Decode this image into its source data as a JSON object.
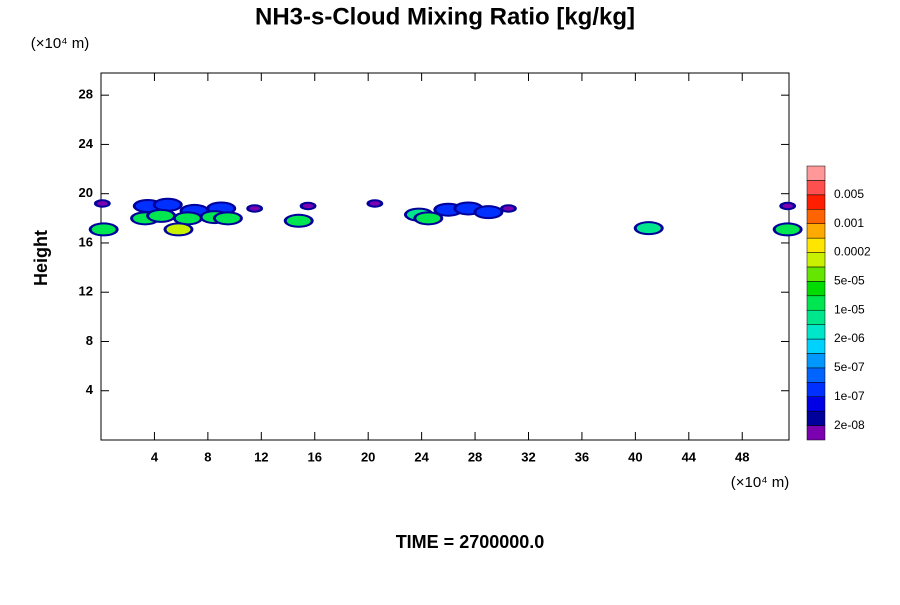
{
  "chart_data": {
    "type": "contour",
    "title": "NH3-s-Cloud Mixing Ratio [kg/kg]",
    "x_unit_label": "(×10⁴ m)",
    "y_unit_label": "(×10⁴ m)",
    "ylabel": "Height",
    "footer": "TIME = 2700000.0",
    "xlim": [
      0,
      51.5
    ],
    "ylim": [
      0,
      29.8
    ],
    "xticks": [
      4,
      8,
      12,
      16,
      20,
      24,
      28,
      32,
      36,
      40,
      44,
      48
    ],
    "yticks": [
      4,
      8,
      12,
      16,
      20,
      24,
      28
    ],
    "x": [
      0.1,
      0.2,
      3.5,
      5,
      7,
      9,
      3.3,
      4.5,
      6.5,
      8.5,
      9.5,
      5.8,
      11.5,
      14.8,
      15.5,
      20.5,
      23.8,
      24.5,
      26,
      27.5,
      29,
      30.5,
      41,
      51.4,
      51.4
    ],
    "y": [
      19.2,
      17.1,
      19,
      19.1,
      18.6,
      18.8,
      18,
      18.2,
      18,
      18.1,
      18,
      17.1,
      18.8,
      17.8,
      19,
      19.2,
      18.3,
      18,
      18.7,
      18.8,
      18.5,
      18.8,
      17.2,
      19,
      17.1
    ],
    "values": [
      2e-08,
      2e-05,
      1e-07,
      1e-07,
      1e-07,
      1e-07,
      1e-05,
      1e-05,
      1e-05,
      1e-05,
      1e-05,
      0.0001,
      2e-08,
      1e-05,
      2e-08,
      2e-08,
      5e-06,
      1e-05,
      1e-07,
      1e-07,
      1e-07,
      2e-08,
      5e-06,
      2e-08,
      2e-05
    ],
    "colorbar": {
      "colors": [
        "#7a00b0",
        "#00009a",
        "#0000e6",
        "#0030ff",
        "#0064ff",
        "#0098ff",
        "#00d2ff",
        "#00e6c8",
        "#00e68c",
        "#00e650",
        "#00dc00",
        "#64e600",
        "#c8f000",
        "#ffe600",
        "#ffaa00",
        "#ff6400",
        "#ff1e00",
        "#ff5050",
        "#ff9898"
      ],
      "ticks": [
        {
          "value": 2e-08,
          "label": "2e-08"
        },
        {
          "value": 1e-07,
          "label": "1e-07"
        },
        {
          "value": 5e-07,
          "label": "5e-07"
        },
        {
          "value": 2e-06,
          "label": "2e-06"
        },
        {
          "value": 1e-05,
          "label": "1e-05"
        },
        {
          "value": 5e-05,
          "label": "5e-05"
        },
        0.0002,
        0.001,
        0.005
      ]
    }
  }
}
